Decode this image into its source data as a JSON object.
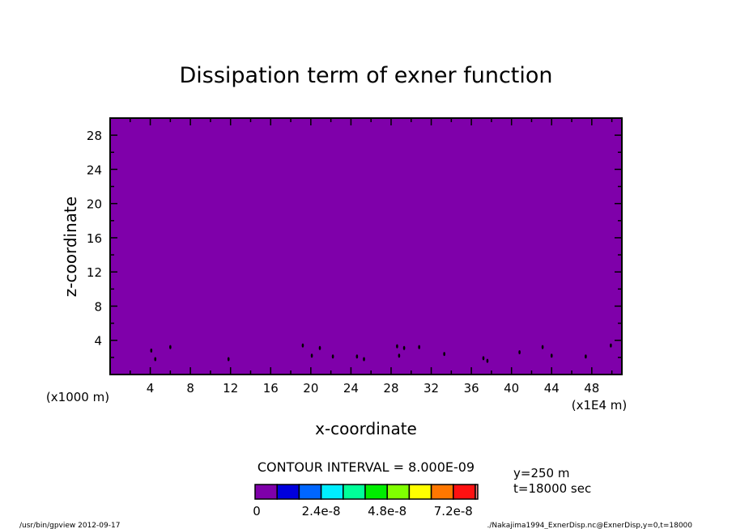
{
  "chart_data": {
    "type": "heatmap",
    "title": "Dissipation term of exner function",
    "xlabel": "x-coordinate",
    "ylabel": "z-coordinate",
    "x_unit_label": "(x1E4 m)",
    "y_unit_label": "(x1000 m)",
    "xlim": [
      0,
      51
    ],
    "ylim": [
      0,
      30
    ],
    "xticks": [
      4,
      8,
      12,
      16,
      20,
      24,
      28,
      32,
      36,
      40,
      44,
      48
    ],
    "yticks": [
      4,
      8,
      12,
      16,
      20,
      24,
      28
    ],
    "field_value": 0,
    "field_color": "#7f00aa",
    "specks": [
      [
        4.1,
        2.8
      ],
      [
        4.5,
        1.8
      ],
      [
        6,
        3.2
      ],
      [
        11.8,
        1.8
      ],
      [
        19.2,
        3.4
      ],
      [
        20.1,
        2.2
      ],
      [
        20.9,
        3.1
      ],
      [
        22.2,
        2.1
      ],
      [
        24.6,
        2.1
      ],
      [
        25.3,
        1.8
      ],
      [
        28.6,
        3.3
      ],
      [
        28.8,
        2.2
      ],
      [
        29.3,
        3.1
      ],
      [
        30.8,
        3.2
      ],
      [
        33.3,
        2.4
      ],
      [
        37.2,
        1.9
      ],
      [
        37.6,
        1.6
      ],
      [
        40.8,
        2.6
      ],
      [
        43.1,
        3.2
      ],
      [
        44,
        2.2
      ],
      [
        47.4,
        2.1
      ],
      [
        49.9,
        3.4
      ]
    ],
    "legend": {
      "title": "CONTOUR INTERVAL = 8.000E-09",
      "colors": [
        "#7f00aa",
        "#0000dd",
        "#0066ff",
        "#00eeff",
        "#00ff99",
        "#00ee00",
        "#80ff00",
        "#ffff00",
        "#ff7700",
        "#ff1111",
        "#ff8888"
      ],
      "tick_labels": [
        "0",
        "2.4e-8",
        "4.8e-8",
        "7.2e-8"
      ],
      "tick_values": [
        0,
        2.4e-08,
        4.8e-08,
        7.2e-08
      ],
      "max_value": 8e-08
    }
  },
  "annotations": {
    "y_slice": "y=250 m",
    "time": "t=18000 sec",
    "program": "/usr/bin/gpview  2012-09-17",
    "source": "./Nakajima1994_ExnerDisp.nc@ExnerDisp,y=0,t=18000"
  }
}
